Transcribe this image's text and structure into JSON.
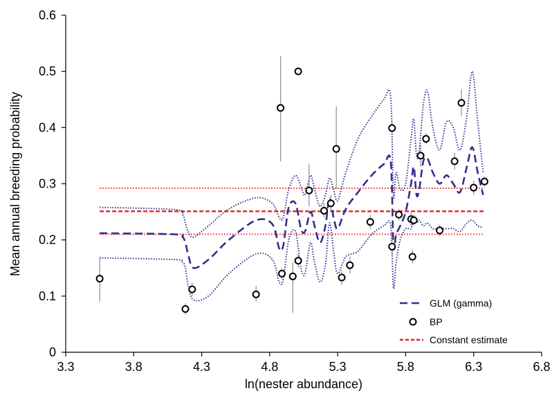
{
  "chart_data": {
    "type": "scatter",
    "xlabel": "ln(nester abundance)",
    "ylabel": "Mean annual breeding probability",
    "xlim": [
      3.3,
      6.8
    ],
    "ylim": [
      0,
      0.6
    ],
    "x_ticks": [
      "3.3",
      "3.8",
      "4.3",
      "4.8",
      "5.3",
      "5.8",
      "6.3",
      "6.8"
    ],
    "y_ticks": [
      "0",
      "0.1",
      "0.2",
      "0.3",
      "0.4",
      "0.5",
      "0.6"
    ],
    "grid": false,
    "legend": {
      "placement": "bottom-right",
      "entries": [
        "GLM (gamma)",
        "BP",
        "Constant estimate"
      ]
    },
    "colors": {
      "glm": "#2e2e8f",
      "constant": "#e8201f",
      "points": "#000000",
      "error_bars": "#8c8c8c"
    },
    "series": [
      {
        "name": "BP",
        "style": "points-with-error-bars",
        "points": [
          {
            "x": 3.55,
            "y": 0.131,
            "lo": 0.09,
            "hi": 0.17
          },
          {
            "x": 4.18,
            "y": 0.077,
            "lo": 0.067,
            "hi": 0.087
          },
          {
            "x": 4.23,
            "y": 0.112,
            "lo": 0.1,
            "hi": 0.124
          },
          {
            "x": 4.7,
            "y": 0.103,
            "lo": 0.09,
            "hi": 0.118
          },
          {
            "x": 4.88,
            "y": 0.435,
            "lo": 0.34,
            "hi": 0.527
          },
          {
            "x": 4.89,
            "y": 0.14,
            "lo": 0.13,
            "hi": 0.15
          },
          {
            "x": 4.97,
            "y": 0.135,
            "lo": 0.07,
            "hi": 0.16
          },
          {
            "x": 5.01,
            "y": 0.163,
            "lo": 0.15,
            "hi": 0.175
          },
          {
            "x": 5.01,
            "y": 0.5,
            "lo": 0.495,
            "hi": 0.505
          },
          {
            "x": 5.09,
            "y": 0.288,
            "lo": 0.26,
            "hi": 0.335
          },
          {
            "x": 5.2,
            "y": 0.252,
            "lo": 0.24,
            "hi": 0.265
          },
          {
            "x": 5.25,
            "y": 0.265,
            "lo": 0.25,
            "hi": 0.28
          },
          {
            "x": 5.29,
            "y": 0.362,
            "lo": 0.29,
            "hi": 0.438
          },
          {
            "x": 5.33,
            "y": 0.133,
            "lo": 0.12,
            "hi": 0.145
          },
          {
            "x": 5.39,
            "y": 0.155,
            "lo": 0.14,
            "hi": 0.17
          },
          {
            "x": 5.54,
            "y": 0.232,
            "lo": 0.22,
            "hi": 0.245
          },
          {
            "x": 5.7,
            "y": 0.188,
            "lo": 0.17,
            "hi": 0.205
          },
          {
            "x": 5.7,
            "y": 0.399,
            "lo": 0.39,
            "hi": 0.41
          },
          {
            "x": 5.75,
            "y": 0.245,
            "lo": 0.235,
            "hi": 0.255
          },
          {
            "x": 5.84,
            "y": 0.237,
            "lo": 0.225,
            "hi": 0.25
          },
          {
            "x": 5.85,
            "y": 0.17,
            "lo": 0.158,
            "hi": 0.182
          },
          {
            "x": 5.86,
            "y": 0.235,
            "lo": 0.225,
            "hi": 0.245
          },
          {
            "x": 5.91,
            "y": 0.35,
            "lo": 0.33,
            "hi": 0.37
          },
          {
            "x": 5.95,
            "y": 0.38,
            "lo": 0.37,
            "hi": 0.39
          },
          {
            "x": 6.05,
            "y": 0.217,
            "lo": 0.207,
            "hi": 0.227
          },
          {
            "x": 6.16,
            "y": 0.34,
            "lo": 0.325,
            "hi": 0.355
          },
          {
            "x": 6.21,
            "y": 0.444,
            "lo": 0.42,
            "hi": 0.468
          },
          {
            "x": 6.3,
            "y": 0.293,
            "lo": 0.28,
            "hi": 0.305
          },
          {
            "x": 6.38,
            "y": 0.304,
            "lo": 0.295,
            "hi": 0.313
          }
        ]
      },
      {
        "name": "GLM (gamma)",
        "style": "dashed",
        "x": [
          3.55,
          4.1,
          4.16,
          4.18,
          4.2,
          4.24,
          4.35,
          4.5,
          4.7,
          4.82,
          4.87,
          4.9,
          4.94,
          4.99,
          5.03,
          5.06,
          5.1,
          5.13,
          5.17,
          5.21,
          5.24,
          5.27,
          5.3,
          5.36,
          5.45,
          5.55,
          5.64,
          5.69,
          5.71,
          5.73,
          5.76,
          5.8,
          5.84,
          5.86,
          5.88,
          5.9,
          5.93,
          5.96,
          6.0,
          6.05,
          6.1,
          6.15,
          6.2,
          6.25,
          6.29,
          6.33,
          6.37
        ],
        "y": [
          0.212,
          0.21,
          0.205,
          0.195,
          0.175,
          0.15,
          0.165,
          0.2,
          0.235,
          0.228,
          0.185,
          0.19,
          0.258,
          0.265,
          0.22,
          0.215,
          0.25,
          0.225,
          0.195,
          0.225,
          0.275,
          0.24,
          0.22,
          0.255,
          0.285,
          0.315,
          0.335,
          0.34,
          0.19,
          0.21,
          0.225,
          0.25,
          0.3,
          0.33,
          0.28,
          0.29,
          0.34,
          0.345,
          0.32,
          0.3,
          0.315,
          0.3,
          0.285,
          0.33,
          0.365,
          0.32,
          0.28
        ]
      },
      {
        "name": "GLM upper bound",
        "style": "dotted",
        "x": [
          3.55,
          4.1,
          4.16,
          4.18,
          4.2,
          4.24,
          4.35,
          4.5,
          4.7,
          4.82,
          4.87,
          4.9,
          4.94,
          4.99,
          5.03,
          5.06,
          5.1,
          5.13,
          5.17,
          5.21,
          5.24,
          5.27,
          5.3,
          5.36,
          5.45,
          5.55,
          5.64,
          5.69,
          5.71,
          5.73,
          5.76,
          5.8,
          5.84,
          5.86,
          5.88,
          5.9,
          5.93,
          5.96,
          6.0,
          6.05,
          6.1,
          6.15,
          6.2,
          6.25,
          6.29,
          6.33,
          6.37
        ],
        "y": [
          0.258,
          0.254,
          0.245,
          0.23,
          0.215,
          0.205,
          0.225,
          0.255,
          0.275,
          0.265,
          0.24,
          0.24,
          0.29,
          0.315,
          0.295,
          0.28,
          0.315,
          0.29,
          0.26,
          0.28,
          0.31,
          0.29,
          0.27,
          0.32,
          0.38,
          0.42,
          0.45,
          0.455,
          0.28,
          0.32,
          0.29,
          0.3,
          0.38,
          0.415,
          0.35,
          0.36,
          0.44,
          0.465,
          0.4,
          0.36,
          0.41,
          0.4,
          0.36,
          0.42,
          0.5,
          0.41,
          0.32
        ]
      },
      {
        "name": "GLM lower bound",
        "style": "dotted",
        "x": [
          3.55,
          4.1,
          4.16,
          4.18,
          4.2,
          4.24,
          4.35,
          4.5,
          4.7,
          4.82,
          4.87,
          4.9,
          4.94,
          4.99,
          5.03,
          5.06,
          5.1,
          5.13,
          5.17,
          5.21,
          5.24,
          5.27,
          5.3,
          5.36,
          5.45,
          5.55,
          5.64,
          5.69,
          5.71,
          5.73,
          5.76,
          5.8,
          5.84,
          5.86,
          5.88,
          5.9,
          5.93,
          5.96,
          6.0,
          6.05,
          6.1,
          6.15,
          6.2,
          6.25,
          6.29,
          6.33,
          6.37
        ],
        "y": [
          0.168,
          0.165,
          0.16,
          0.15,
          0.12,
          0.093,
          0.1,
          0.14,
          0.175,
          0.165,
          0.125,
          0.13,
          0.2,
          0.215,
          0.15,
          0.14,
          0.195,
          0.16,
          0.125,
          0.155,
          0.23,
          0.18,
          0.14,
          0.17,
          0.18,
          0.21,
          0.225,
          0.225,
          0.115,
          0.16,
          0.2,
          0.22,
          0.22,
          0.24,
          0.23,
          0.235,
          0.225,
          0.23,
          0.22,
          0.22,
          0.22,
          0.22,
          0.215,
          0.23,
          0.235,
          0.225,
          0.222
        ]
      },
      {
        "name": "Constant estimate",
        "style": "dashed",
        "x": [
          3.55,
          6.38
        ],
        "y": [
          0.251,
          0.251
        ]
      },
      {
        "name": "Constant estimate upper bound",
        "style": "dotted",
        "x": [
          3.55,
          6.38
        ],
        "y": [
          0.292,
          0.292
        ]
      },
      {
        "name": "Constant estimate lower bound",
        "style": "dotted",
        "x": [
          3.55,
          6.38
        ],
        "y": [
          0.21,
          0.21
        ]
      }
    ]
  }
}
